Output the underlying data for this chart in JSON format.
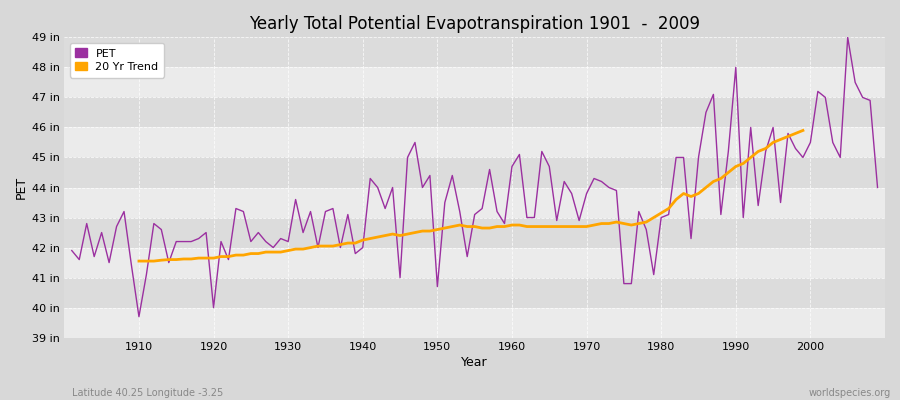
{
  "title": "Yearly Total Potential Evapotranspiration 1901  -  2009",
  "xlabel": "Year",
  "ylabel": "PET",
  "subtitle": "Latitude 40.25 Longitude -3.25",
  "watermark": "worldspecies.org",
  "pet_color": "#9B30A0",
  "trend_color": "#FFA500",
  "bg_color": "#D8D8D8",
  "plot_bg_light": "#EBEBEB",
  "plot_bg_dark": "#DCDCDC",
  "years": [
    1901,
    1902,
    1903,
    1904,
    1905,
    1906,
    1907,
    1908,
    1909,
    1910,
    1911,
    1912,
    1913,
    1914,
    1915,
    1916,
    1917,
    1918,
    1919,
    1920,
    1921,
    1922,
    1923,
    1924,
    1925,
    1926,
    1927,
    1928,
    1929,
    1930,
    1931,
    1932,
    1933,
    1934,
    1935,
    1936,
    1937,
    1938,
    1939,
    1940,
    1941,
    1942,
    1943,
    1944,
    1945,
    1946,
    1947,
    1948,
    1949,
    1950,
    1951,
    1952,
    1953,
    1954,
    1955,
    1956,
    1957,
    1958,
    1959,
    1960,
    1961,
    1962,
    1963,
    1964,
    1965,
    1966,
    1967,
    1968,
    1969,
    1970,
    1971,
    1972,
    1973,
    1974,
    1975,
    1976,
    1977,
    1978,
    1979,
    1980,
    1981,
    1982,
    1983,
    1984,
    1985,
    1986,
    1987,
    1988,
    1989,
    1990,
    1991,
    1992,
    1993,
    1994,
    1995,
    1996,
    1997,
    1998,
    1999,
    2000,
    2001,
    2002,
    2003,
    2004,
    2005,
    2006,
    2007,
    2008,
    2009
  ],
  "pet_values": [
    41.9,
    41.6,
    42.8,
    41.7,
    42.5,
    41.5,
    42.7,
    43.2,
    41.4,
    39.7,
    41.1,
    42.8,
    42.6,
    41.5,
    42.2,
    42.2,
    42.2,
    42.3,
    42.5,
    40.0,
    42.2,
    41.6,
    43.3,
    43.2,
    42.2,
    42.5,
    42.2,
    42.0,
    42.3,
    42.2,
    43.6,
    42.5,
    43.2,
    42.0,
    43.2,
    43.3,
    42.0,
    43.1,
    41.8,
    42.0,
    44.3,
    44.0,
    43.3,
    44.0,
    41.0,
    45.0,
    45.5,
    44.0,
    44.4,
    40.7,
    43.5,
    44.4,
    43.2,
    41.7,
    43.1,
    43.3,
    44.6,
    43.2,
    42.8,
    44.7,
    45.1,
    43.0,
    43.0,
    45.2,
    44.7,
    42.9,
    44.2,
    43.8,
    42.9,
    43.8,
    44.3,
    44.2,
    44.0,
    43.9,
    40.8,
    40.8,
    43.2,
    42.6,
    41.1,
    43.0,
    43.1,
    45.0,
    45.0,
    42.3,
    45.0,
    46.5,
    47.1,
    43.1,
    45.2,
    48.0,
    43.0,
    46.0,
    43.4,
    45.2,
    46.0,
    43.5,
    45.8,
    45.3,
    45.0,
    45.5,
    47.2,
    47.0,
    45.5,
    45.0,
    49.0,
    47.5,
    47.0,
    46.9,
    44.0
  ],
  "trend_values": [
    null,
    null,
    null,
    null,
    null,
    null,
    null,
    null,
    null,
    41.55,
    41.55,
    41.55,
    41.58,
    41.6,
    41.6,
    41.62,
    41.62,
    41.65,
    41.65,
    41.65,
    41.7,
    41.7,
    41.75,
    41.75,
    41.8,
    41.8,
    41.85,
    41.85,
    41.85,
    41.9,
    41.95,
    41.95,
    42.0,
    42.05,
    42.05,
    42.05,
    42.1,
    42.15,
    42.15,
    42.25,
    42.3,
    42.35,
    42.4,
    42.45,
    42.4,
    42.45,
    42.5,
    42.55,
    42.55,
    42.6,
    42.65,
    42.7,
    42.75,
    42.7,
    42.7,
    42.65,
    42.65,
    42.7,
    42.7,
    42.75,
    42.75,
    42.7,
    42.7,
    42.7,
    42.7,
    42.7,
    42.7,
    42.7,
    42.7,
    42.7,
    42.75,
    42.8,
    42.8,
    42.85,
    42.8,
    42.75,
    42.8,
    42.85,
    43.0,
    43.15,
    43.3,
    43.6,
    43.8,
    43.7,
    43.8,
    44.0,
    44.2,
    44.3,
    44.5,
    44.7,
    44.8,
    45.0,
    45.2,
    45.3,
    45.5,
    45.6,
    45.7,
    45.8,
    45.9,
    null,
    null,
    null,
    null,
    null,
    null,
    null,
    null,
    null
  ],
  "ylim_min": 39,
  "ylim_max": 49,
  "ytick_values": [
    39,
    40,
    41,
    42,
    43,
    44,
    45,
    46,
    47,
    48,
    49
  ],
  "ytick_labels": [
    "39 in",
    "40 in",
    "41 in",
    "42 in",
    "43 in",
    "44 in",
    "45 in",
    "46 in",
    "47 in",
    "48 in",
    "49 in"
  ],
  "xlim_min": 1900,
  "xlim_max": 2010
}
